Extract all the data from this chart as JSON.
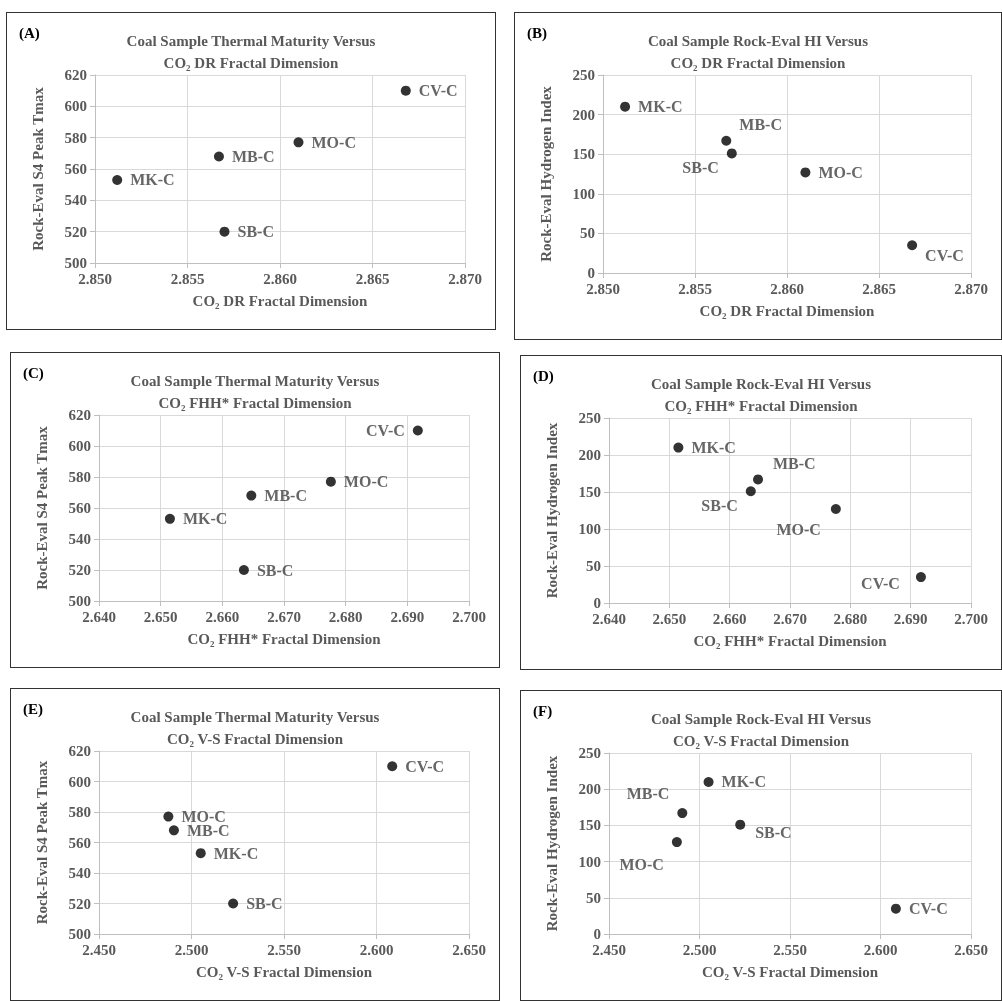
{
  "chart_data": [
    {
      "type": "scatter",
      "title": "Coal Sample Thermal Maturity Versus\nCO₂ DR Fractal Dimension",
      "annotations": [
        "(A)"
      ],
      "xlabel": "CO₂ DR Fractal Dimension",
      "ylabel": "Rock-Eval S4 Peak Tmax",
      "series": [
        {
          "name": "MK-C",
          "color": "#000000",
          "x": [
            2.8512
          ],
          "values": [
            553
          ]
        },
        {
          "name": "MB-C",
          "color": "#000000",
          "x": [
            2.8567
          ],
          "values": [
            568
          ]
        },
        {
          "name": "SB-C",
          "color": "#000000",
          "x": [
            2.857
          ],
          "values": [
            520
          ]
        },
        {
          "name": "MO-C",
          "color": "#000000",
          "x": [
            2.861
          ],
          "values": [
            577
          ]
        },
        {
          "name": "CV-C",
          "color": "#000000",
          "x": [
            2.8668
          ],
          "values": [
            610
          ]
        }
      ],
      "xlim": [
        2.85,
        2.87
      ],
      "xticks": [
        {
          "value": 2.85,
          "label": "2.850"
        },
        {
          "value": 2.855,
          "label": "2.855"
        },
        {
          "value": 2.86,
          "label": "2.860"
        },
        {
          "value": 2.865,
          "label": "2.865"
        },
        {
          "value": 2.87,
          "label": "2.870"
        }
      ],
      "ylim": [
        500,
        620
      ],
      "yticks": [
        500,
        520,
        540,
        560,
        580,
        600,
        620
      ],
      "grid": true,
      "legend": false,
      "marker": "circle"
    },
    {
      "type": "scatter",
      "title": "Coal Sample Rock-Eval HI Versus\nCO₂ DR Fractal Dimension",
      "annotations": [
        "(B)"
      ],
      "xlabel": "CO₂ DR Fractal Dimension",
      "ylabel": "Rock-Eval Hydrogen Index",
      "series": [
        {
          "name": "MK-C",
          "color": "#000000",
          "x": [
            2.8512
          ],
          "values": [
            210
          ]
        },
        {
          "name": "MB-C",
          "color": "#000000",
          "x": [
            2.8567
          ],
          "values": [
            167
          ]
        },
        {
          "name": "SB-C",
          "color": "#000000",
          "x": [
            2.857
          ],
          "values": [
            151
          ]
        },
        {
          "name": "MO-C",
          "color": "#000000",
          "x": [
            2.861
          ],
          "values": [
            127
          ]
        },
        {
          "name": "CV-C",
          "color": "#000000",
          "x": [
            2.8668
          ],
          "values": [
            35
          ]
        }
      ],
      "xlim": [
        2.85,
        2.87
      ],
      "xticks": [
        {
          "value": 2.85,
          "label": "2.850"
        },
        {
          "value": 2.855,
          "label": "2.855"
        },
        {
          "value": 2.86,
          "label": "2.860"
        },
        {
          "value": 2.865,
          "label": "2.865"
        },
        {
          "value": 2.87,
          "label": "2.870"
        }
      ],
      "ylim": [
        0,
        250
      ],
      "yticks": [
        0,
        50,
        100,
        150,
        200,
        250
      ],
      "grid": true,
      "legend": false,
      "marker": "circle"
    },
    {
      "type": "scatter",
      "title": "Coal Sample Thermal Maturity Versus\nCO₂ FHH* Fractal Dimension",
      "annotations": [
        "(C)"
      ],
      "xlabel": "CO₂ FHH* Fractal Dimension",
      "ylabel": "Rock-Eval S4 Peak Tmax",
      "series": [
        {
          "name": "MK-C",
          "color": "#000000",
          "x": [
            2.6515
          ],
          "values": [
            553
          ]
        },
        {
          "name": "MB-C",
          "color": "#000000",
          "x": [
            2.6647
          ],
          "values": [
            568
          ]
        },
        {
          "name": "SB-C",
          "color": "#000000",
          "x": [
            2.6635
          ],
          "values": [
            520
          ]
        },
        {
          "name": "MO-C",
          "color": "#000000",
          "x": [
            2.6776
          ],
          "values": [
            577
          ]
        },
        {
          "name": "CV-C",
          "color": "#000000",
          "x": [
            2.6917
          ],
          "values": [
            610
          ]
        }
      ],
      "xlim": [
        2.64,
        2.7
      ],
      "xticks": [
        {
          "value": 2.64,
          "label": "2.640"
        },
        {
          "value": 2.65,
          "label": "2.650"
        },
        {
          "value": 2.66,
          "label": "2.660"
        },
        {
          "value": 2.67,
          "label": "2.670"
        },
        {
          "value": 2.68,
          "label": "2.680"
        },
        {
          "value": 2.69,
          "label": "2.690"
        },
        {
          "value": 2.7,
          "label": "2.700"
        }
      ],
      "ylim": [
        500,
        620
      ],
      "yticks": [
        500,
        520,
        540,
        560,
        580,
        600,
        620
      ],
      "grid": true,
      "legend": false,
      "marker": "circle"
    },
    {
      "type": "scatter",
      "title": "Coal Sample Rock-Eval HI Versus\nCO₂ FHH* Fractal Dimension",
      "annotations": [
        "(D)"
      ],
      "xlabel": "CO₂ FHH* Fractal Dimension",
      "ylabel": "Rock-Eval Hydrogen Index",
      "series": [
        {
          "name": "MK-C",
          "color": "#000000",
          "x": [
            2.6515
          ],
          "values": [
            210
          ]
        },
        {
          "name": "MB-C",
          "color": "#000000",
          "x": [
            2.6647
          ],
          "values": [
            167
          ]
        },
        {
          "name": "SB-C",
          "color": "#000000",
          "x": [
            2.6635
          ],
          "values": [
            151
          ]
        },
        {
          "name": "MO-C",
          "color": "#000000",
          "x": [
            2.6776
          ],
          "values": [
            127
          ]
        },
        {
          "name": "CV-C",
          "color": "#000000",
          "x": [
            2.6917
          ],
          "values": [
            35
          ]
        }
      ],
      "xlim": [
        2.64,
        2.7
      ],
      "xticks": [
        {
          "value": 2.64,
          "label": "2.640"
        },
        {
          "value": 2.65,
          "label": "2.650"
        },
        {
          "value": 2.66,
          "label": "2.660"
        },
        {
          "value": 2.67,
          "label": "2.670"
        },
        {
          "value": 2.68,
          "label": "2.680"
        },
        {
          "value": 2.69,
          "label": "2.690"
        },
        {
          "value": 2.7,
          "label": "2.700"
        }
      ],
      "ylim": [
        0,
        250
      ],
      "yticks": [
        0,
        50,
        100,
        150,
        200,
        250
      ],
      "grid": true,
      "legend": false,
      "marker": "circle"
    },
    {
      "type": "scatter",
      "title": "Coal Sample Thermal Maturity Versus\nCO₂ V-S Fractal Dimension",
      "annotations": [
        "(E)"
      ],
      "xlabel": "CO₂ V-S Fractal Dimension",
      "ylabel": "Rock-Eval S4 Peak Tmax",
      "series": [
        {
          "name": "MK-C",
          "color": "#000000",
          "x": [
            2.505
          ],
          "values": [
            553
          ]
        },
        {
          "name": "MB-C",
          "color": "#000000",
          "x": [
            2.4905
          ],
          "values": [
            568
          ]
        },
        {
          "name": "SB-C",
          "color": "#000000",
          "x": [
            2.5225
          ],
          "values": [
            520
          ]
        },
        {
          "name": "MO-C",
          "color": "#000000",
          "x": [
            2.4875
          ],
          "values": [
            577
          ]
        },
        {
          "name": "CV-C",
          "color": "#000000",
          "x": [
            2.6085
          ],
          "values": [
            610
          ]
        }
      ],
      "xlim": [
        2.45,
        2.65
      ],
      "xticks": [
        {
          "value": 2.45,
          "label": "2.450"
        },
        {
          "value": 2.5,
          "label": "2.500"
        },
        {
          "value": 2.55,
          "label": "2.550"
        },
        {
          "value": 2.6,
          "label": "2.600"
        },
        {
          "value": 2.65,
          "label": "2.650"
        }
      ],
      "ylim": [
        500,
        620
      ],
      "yticks": [
        500,
        520,
        540,
        560,
        580,
        600,
        620
      ],
      "grid": true,
      "legend": false,
      "marker": "circle"
    },
    {
      "type": "scatter",
      "title": "Coal Sample Rock-Eval HI Versus\nCO₂ V-S Fractal Dimension",
      "annotations": [
        "(F)"
      ],
      "xlabel": "CO₂ V-S Fractal Dimension",
      "ylabel": "Rock-Eval Hydrogen Index",
      "series": [
        {
          "name": "MK-C",
          "color": "#000000",
          "x": [
            2.505
          ],
          "values": [
            210
          ]
        },
        {
          "name": "MB-C",
          "color": "#000000",
          "x": [
            2.4905
          ],
          "values": [
            167
          ]
        },
        {
          "name": "SB-C",
          "color": "#000000",
          "x": [
            2.5225
          ],
          "values": [
            151
          ]
        },
        {
          "name": "MO-C",
          "color": "#000000",
          "x": [
            2.4875
          ],
          "values": [
            127
          ]
        },
        {
          "name": "CV-C",
          "color": "#000000",
          "x": [
            2.6085
          ],
          "values": [
            35
          ]
        }
      ],
      "xlim": [
        2.45,
        2.65
      ],
      "xticks": [
        {
          "value": 2.45,
          "label": "2.450"
        },
        {
          "value": 2.5,
          "label": "2.500"
        },
        {
          "value": 2.55,
          "label": "2.550"
        },
        {
          "value": 2.6,
          "label": "2.600"
        },
        {
          "value": 2.65,
          "label": "2.650"
        }
      ],
      "ylim": [
        0,
        250
      ],
      "yticks": [
        0,
        50,
        100,
        150,
        200,
        250
      ],
      "grid": true,
      "legend": false,
      "marker": "circle"
    }
  ]
}
